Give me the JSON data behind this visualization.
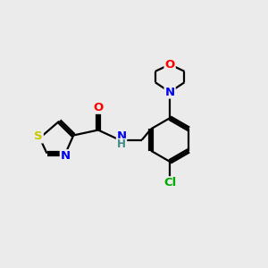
{
  "bg_color": "#ebebeb",
  "bond_color": "#000000",
  "bond_width": 1.6,
  "atom_colors": {
    "S": "#c8c800",
    "N": "#0000ee",
    "O": "#ff0000",
    "Cl": "#00aa00",
    "C": "#000000"
  },
  "font_size": 9.5,
  "fig_size": [
    3.0,
    3.0
  ],
  "dpi": 100
}
